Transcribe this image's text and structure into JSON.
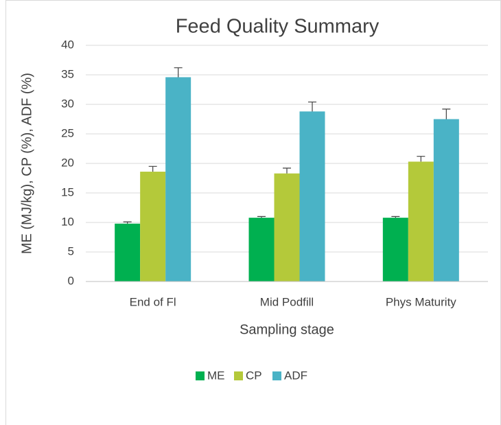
{
  "chart_data": {
    "type": "bar",
    "title": "Feed Quality Summary",
    "x_label": "Sampling stage",
    "y_label": "ME (MJ/kg), CP (%), ADF (%)",
    "categories": [
      "End of Fl",
      "Mid Podfill",
      "Phys Maturity"
    ],
    "series": [
      {
        "name": "ME",
        "color": "#00b050",
        "values": [
          9.8,
          10.8,
          10.8
        ],
        "errors": [
          0.3,
          0.2,
          0.2
        ]
      },
      {
        "name": "CP",
        "color": "#b4c93a",
        "values": [
          18.6,
          18.3,
          20.3
        ],
        "errors": [
          0.9,
          0.9,
          0.9
        ]
      },
      {
        "name": "ADF",
        "color": "#4ab3c6",
        "values": [
          34.6,
          28.8,
          27.5
        ],
        "errors": [
          1.6,
          1.6,
          1.7
        ]
      }
    ],
    "ylim": [
      0,
      40
    ],
    "yticks": [
      0,
      5,
      10,
      15,
      20,
      25,
      30,
      35,
      40
    ],
    "grid": true,
    "legend": "bottom"
  }
}
